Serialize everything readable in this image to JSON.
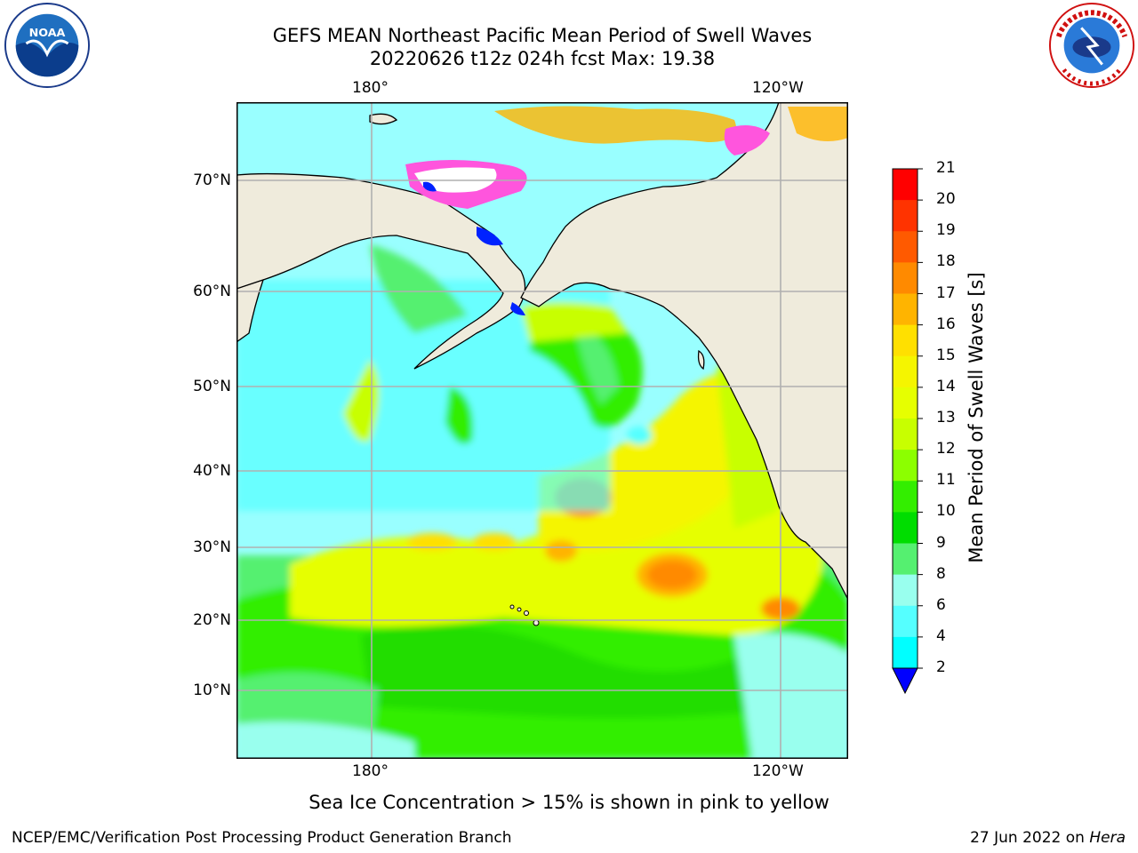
{
  "title": {
    "line1": "GEFS MEAN Northeast Pacific Mean Period of Swell Waves",
    "line2": "20220626 t12z 024h fcst   Max: 19.38"
  },
  "logos": {
    "left": "noaa-logo",
    "right": "national-weather-service-logo",
    "left_text": "NOAA",
    "right_text": "NATIONAL WEATHER SERVICE"
  },
  "map": {
    "lon_labels_top": [
      "180°",
      "120°W"
    ],
    "lon_labels_bottom": [
      "180°",
      "120°W"
    ],
    "lat_labels": [
      "70°N",
      "60°N",
      "50°N",
      "40°N",
      "30°N",
      "20°N",
      "10°N"
    ],
    "land_color": "#efebdc",
    "grid_color": "#b0b0b0"
  },
  "colorbar": {
    "title": "Mean Period of Swell Waves [s]",
    "ticks": [
      "21",
      "20",
      "19",
      "18",
      "17",
      "16",
      "15",
      "14",
      "13",
      "12",
      "11",
      "10",
      "9",
      "8",
      "6",
      "4",
      "2"
    ],
    "colors": [
      "#ff0000",
      "#ff3300",
      "#ff5a00",
      "#ff8a00",
      "#ffb400",
      "#ffe000",
      "#f5f500",
      "#e6ff00",
      "#c8ff00",
      "#8cff00",
      "#33ee00",
      "#00dd00",
      "#55f070",
      "#99ffee",
      "#55ffff",
      "#00ffff",
      "#00e8ff",
      "#0088ff",
      "#0022ff"
    ],
    "extend_color": "#0000ff"
  },
  "note": "Sea Ice Concentration > 15% is shown in pink to yellow",
  "footer": {
    "credit": "NCEP/EMC/Verification Post Processing Product Generation Branch",
    "date": "27 Jun 2022 on",
    "host": "Hera"
  }
}
